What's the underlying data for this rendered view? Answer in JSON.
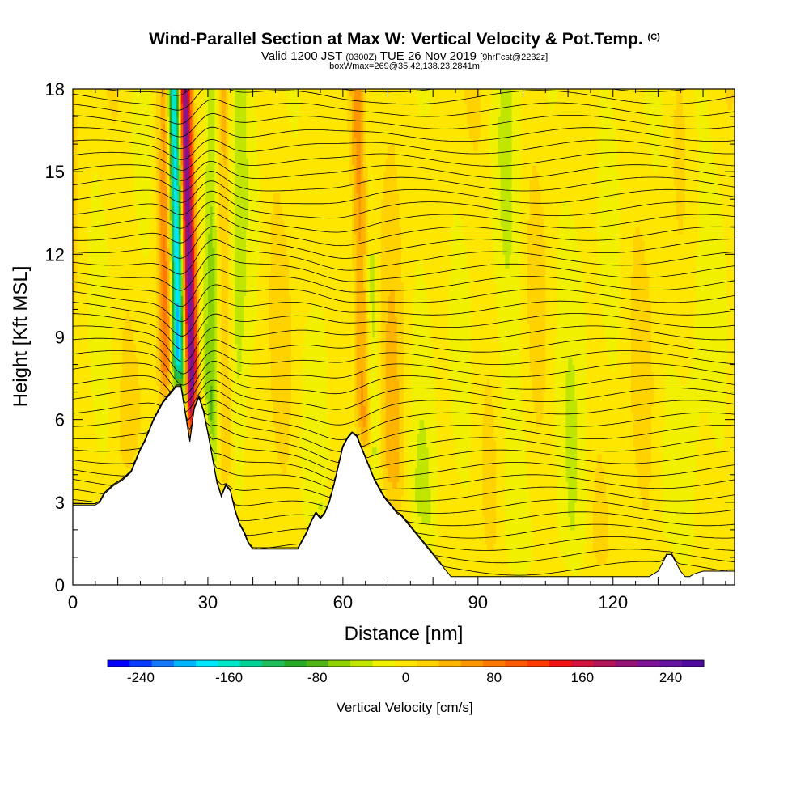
{
  "title": {
    "main": "Wind-Parallel Section at Max W: Vertical Velocity & Pot.Temp.",
    "copyright": "(C)",
    "valid_prefix": "Valid 1200 JST",
    "valid_utc": "(0300Z)",
    "valid_date": "TUE 26 Nov 2019",
    "forecast": "[9hrFcst@2232z]",
    "box_info": "boxWmax=269@35.42,138.23,2841m"
  },
  "chart_data": {
    "type": "heatmap",
    "xlabel": "Distance [nm]",
    "ylabel": "Height [Kft MSL]",
    "xlim": [
      0,
      147
    ],
    "ylim": [
      0,
      18
    ],
    "x_ticks": [
      "0",
      "30",
      "60",
      "90",
      "120"
    ],
    "x_tick_values": [
      0,
      30,
      60,
      90,
      120
    ],
    "y_ticks": [
      "0",
      "3",
      "6",
      "9",
      "12",
      "15",
      "18"
    ],
    "y_tick_values": [
      0,
      3,
      6,
      9,
      12,
      15,
      18
    ],
    "colorbar": {
      "label": "Vertical Velocity [cm/s]",
      "min": -270,
      "max": 270,
      "step": 20,
      "tick_labels": [
        "-240",
        "-160",
        "-80",
        "0",
        "80",
        "160",
        "240"
      ],
      "tick_values": [
        -240,
        -160,
        -80,
        0,
        80,
        160,
        240
      ],
      "colors": [
        "#0000ff",
        "#0a3cff",
        "#1478ff",
        "#00b4ff",
        "#00e6ff",
        "#00e6c8",
        "#00d296",
        "#1ebe5a",
        "#28aa28",
        "#50b414",
        "#8cd200",
        "#c0e600",
        "#f0f000",
        "#ffe600",
        "#ffd200",
        "#ffb400",
        "#ff9600",
        "#ff7800",
        "#ff5a00",
        "#ff3c00",
        "#f01414",
        "#d2143c",
        "#b4145a",
        "#961478",
        "#7d1496",
        "#6414a0",
        "#500aa0"
      ]
    },
    "terrain": [
      [
        0,
        2.9
      ],
      [
        5,
        2.9
      ],
      [
        6,
        3.0
      ],
      [
        7,
        3.3
      ],
      [
        9,
        3.6
      ],
      [
        11,
        3.8
      ],
      [
        13,
        4.1
      ],
      [
        14,
        4.5
      ],
      [
        15,
        4.9
      ],
      [
        16,
        5.2
      ],
      [
        17,
        5.6
      ],
      [
        18,
        6.0
      ],
      [
        19,
        6.3
      ],
      [
        20,
        6.6
      ],
      [
        21,
        6.8
      ],
      [
        22,
        7.0
      ],
      [
        23,
        7.2
      ],
      [
        24,
        7.2
      ],
      [
        25,
        6.2
      ],
      [
        26,
        5.2
      ],
      [
        27,
        6.4
      ],
      [
        28,
        6.8
      ],
      [
        29,
        6.3
      ],
      [
        30,
        5.5
      ],
      [
        31,
        4.6
      ],
      [
        32,
        3.7
      ],
      [
        33,
        3.2
      ],
      [
        34,
        3.6
      ],
      [
        35,
        3.4
      ],
      [
        36,
        2.7
      ],
      [
        37,
        2.2
      ],
      [
        38,
        1.9
      ],
      [
        39,
        1.5
      ],
      [
        40,
        1.3
      ],
      [
        50,
        1.3
      ],
      [
        51,
        1.6
      ],
      [
        52,
        1.9
      ],
      [
        53,
        2.3
      ],
      [
        54,
        2.6
      ],
      [
        55,
        2.4
      ],
      [
        56,
        2.6
      ],
      [
        57,
        3.0
      ],
      [
        58,
        3.6
      ],
      [
        59,
        4.3
      ],
      [
        60,
        5.0
      ],
      [
        61,
        5.3
      ],
      [
        62,
        5.5
      ],
      [
        63,
        5.4
      ],
      [
        64,
        5.0
      ],
      [
        65,
        4.6
      ],
      [
        66,
        4.2
      ],
      [
        67,
        3.8
      ],
      [
        68,
        3.5
      ],
      [
        69,
        3.2
      ],
      [
        70,
        3.0
      ],
      [
        71,
        2.8
      ],
      [
        72,
        2.6
      ],
      [
        73,
        2.5
      ],
      [
        74,
        2.3
      ],
      [
        75,
        2.1
      ],
      [
        76,
        1.9
      ],
      [
        77,
        1.7
      ],
      [
        78,
        1.5
      ],
      [
        79,
        1.3
      ],
      [
        80,
        1.1
      ],
      [
        81,
        0.9
      ],
      [
        82,
        0.7
      ],
      [
        83,
        0.5
      ],
      [
        84,
        0.3
      ],
      [
        90,
        0.3
      ],
      [
        110,
        0.3
      ],
      [
        120,
        0.3
      ],
      [
        128,
        0.3
      ],
      [
        130,
        0.5
      ],
      [
        131,
        0.8
      ],
      [
        132,
        1.1
      ],
      [
        133,
        1.1
      ],
      [
        134,
        0.8
      ],
      [
        135,
        0.5
      ],
      [
        136,
        0.3
      ],
      [
        137,
        0.3
      ],
      [
        138,
        0.4
      ],
      [
        140,
        0.5
      ],
      [
        147,
        0.5
      ]
    ]
  }
}
